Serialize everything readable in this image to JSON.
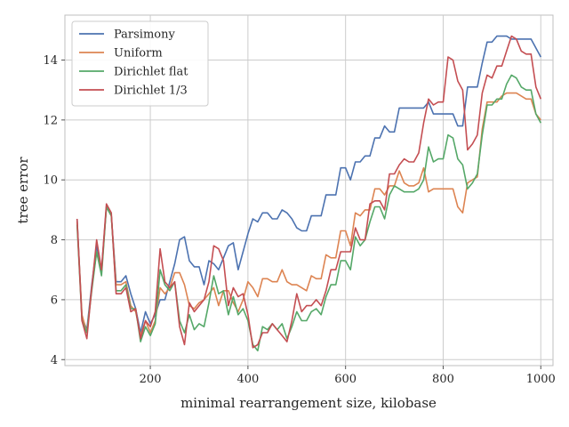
{
  "chart_data": {
    "type": "line",
    "title": "",
    "xlabel": "minimal rearrangement size, kilobase",
    "ylabel": "tree error",
    "xlim": [
      25,
      1025
    ],
    "ylim": [
      3.8,
      15.5
    ],
    "xticks": [
      200,
      400,
      600,
      800,
      1000
    ],
    "yticks": [
      4,
      6,
      8,
      10,
      12,
      14
    ],
    "grid": true,
    "legend_position": "upper left",
    "x": [
      50,
      60,
      70,
      80,
      90,
      100,
      110,
      120,
      130,
      140,
      150,
      160,
      170,
      180,
      190,
      200,
      210,
      220,
      230,
      240,
      250,
      260,
      270,
      280,
      290,
      300,
      310,
      320,
      330,
      340,
      350,
      360,
      370,
      380,
      390,
      400,
      410,
      420,
      430,
      440,
      450,
      460,
      470,
      480,
      490,
      500,
      510,
      520,
      530,
      540,
      550,
      560,
      570,
      580,
      590,
      600,
      610,
      620,
      630,
      640,
      650,
      660,
      670,
      680,
      690,
      700,
      710,
      720,
      730,
      740,
      750,
      760,
      770,
      780,
      790,
      800,
      810,
      820,
      830,
      840,
      850,
      860,
      870,
      880,
      890,
      900,
      910,
      920,
      930,
      940,
      950,
      960,
      970,
      980,
      990,
      1000
    ],
    "series": [
      {
        "name": "Parsimony",
        "color": "#4c72b0",
        "values": [
          8.7,
          5.4,
          5.0,
          6.5,
          7.8,
          7.0,
          9.1,
          8.8,
          6.6,
          6.6,
          6.8,
          6.2,
          5.7,
          4.9,
          5.6,
          5.2,
          5.5,
          6.0,
          6.0,
          6.6,
          7.2,
          8.0,
          8.1,
          7.3,
          7.1,
          7.1,
          6.5,
          7.3,
          7.2,
          7.0,
          7.4,
          7.8,
          7.9,
          7.0,
          7.6,
          8.2,
          8.7,
          8.6,
          8.9,
          8.9,
          8.7,
          8.7,
          9.0,
          8.9,
          8.7,
          8.4,
          8.3,
          8.3,
          8.8,
          8.8,
          8.8,
          9.5,
          9.5,
          9.5,
          10.4,
          10.4,
          10.0,
          10.6,
          10.6,
          10.8,
          10.8,
          11.4,
          11.4,
          11.8,
          11.6,
          11.6,
          12.4,
          12.4,
          12.4,
          12.4,
          12.4,
          12.4,
          12.6,
          12.2,
          12.2,
          12.2,
          12.2,
          12.2,
          11.8,
          11.8,
          13.1,
          13.1,
          13.1,
          13.9,
          14.6,
          14.6,
          14.8,
          14.8,
          14.8,
          14.7,
          14.7,
          14.7,
          14.7,
          14.7,
          14.4,
          14.1
        ]
      },
      {
        "name": "Uniform",
        "color": "#dd8452",
        "values": [
          8.6,
          5.5,
          4.9,
          6.4,
          7.6,
          6.9,
          9.1,
          8.8,
          6.5,
          6.5,
          6.6,
          5.8,
          5.6,
          4.8,
          5.3,
          4.9,
          5.3,
          6.4,
          6.2,
          6.4,
          6.9,
          6.9,
          6.5,
          5.8,
          5.7,
          5.9,
          6.0,
          6.2,
          6.4,
          5.8,
          6.3,
          6.3,
          5.9,
          5.6,
          6.0,
          6.6,
          6.4,
          6.1,
          6.7,
          6.7,
          6.6,
          6.6,
          7.0,
          6.6,
          6.5,
          6.5,
          6.4,
          6.3,
          6.8,
          6.7,
          6.7,
          7.5,
          7.4,
          7.4,
          8.3,
          8.3,
          7.8,
          8.9,
          8.8,
          9.0,
          9.0,
          9.7,
          9.7,
          9.5,
          9.8,
          9.8,
          10.3,
          9.9,
          9.8,
          9.8,
          9.9,
          10.4,
          9.6,
          9.7,
          9.7,
          9.7,
          9.7,
          9.7,
          9.1,
          8.9,
          9.9,
          10.0,
          10.1,
          11.7,
          12.6,
          12.6,
          12.6,
          12.8,
          12.9,
          12.9,
          12.9,
          12.8,
          12.7,
          12.7,
          12.2,
          12.0
        ]
      },
      {
        "name": "Dirichlet flat",
        "color": "#55a868",
        "values": [
          8.5,
          5.3,
          4.9,
          6.3,
          7.6,
          6.8,
          9.1,
          8.8,
          6.3,
          6.3,
          6.5,
          5.7,
          5.7,
          4.6,
          5.1,
          4.8,
          5.2,
          7.0,
          6.5,
          6.3,
          6.6,
          5.3,
          4.9,
          5.5,
          5.0,
          5.2,
          5.1,
          5.9,
          6.8,
          6.2,
          6.3,
          5.5,
          6.1,
          5.5,
          5.7,
          5.3,
          4.5,
          4.3,
          5.1,
          5.0,
          5.2,
          5.0,
          5.2,
          4.7,
          5.1,
          5.6,
          5.3,
          5.3,
          5.6,
          5.7,
          5.5,
          6.1,
          6.5,
          6.5,
          7.3,
          7.3,
          7.0,
          8.1,
          7.8,
          8.0,
          8.6,
          9.1,
          9.1,
          8.7,
          9.5,
          9.8,
          9.7,
          9.6,
          9.6,
          9.6,
          9.7,
          10.0,
          11.1,
          10.6,
          10.7,
          10.7,
          11.5,
          11.4,
          10.7,
          10.5,
          9.7,
          9.9,
          10.2,
          11.5,
          12.5,
          12.5,
          12.7,
          12.7,
          13.2,
          13.5,
          13.4,
          13.1,
          13.0,
          13.0,
          12.2,
          11.9
        ]
      },
      {
        "name": "Dirichlet 1/3",
        "color": "#c44e52",
        "values": [
          8.7,
          5.3,
          4.7,
          6.4,
          8.0,
          7.0,
          9.2,
          8.9,
          6.2,
          6.2,
          6.4,
          5.6,
          5.7,
          4.7,
          5.3,
          5.1,
          5.6,
          7.7,
          6.6,
          6.4,
          6.6,
          5.1,
          4.5,
          5.9,
          5.6,
          5.8,
          6.0,
          6.6,
          7.8,
          7.7,
          7.3,
          5.8,
          6.4,
          6.1,
          6.2,
          5.5,
          4.4,
          4.5,
          4.9,
          4.9,
          5.2,
          5.0,
          4.8,
          4.6,
          5.3,
          6.2,
          5.6,
          5.8,
          5.8,
          6.0,
          5.8,
          6.3,
          7.0,
          7.0,
          7.6,
          7.6,
          7.6,
          8.4,
          8.0,
          8.0,
          9.2,
          9.3,
          9.3,
          9.0,
          10.2,
          10.2,
          10.5,
          10.7,
          10.6,
          10.6,
          10.9,
          11.9,
          12.7,
          12.5,
          12.6,
          12.6,
          14.1,
          14.0,
          13.3,
          13.0,
          11.0,
          11.2,
          11.5,
          12.9,
          13.5,
          13.4,
          13.8,
          13.8,
          14.3,
          14.8,
          14.7,
          14.3,
          14.2,
          14.2,
          13.1,
          12.7
        ]
      }
    ]
  }
}
